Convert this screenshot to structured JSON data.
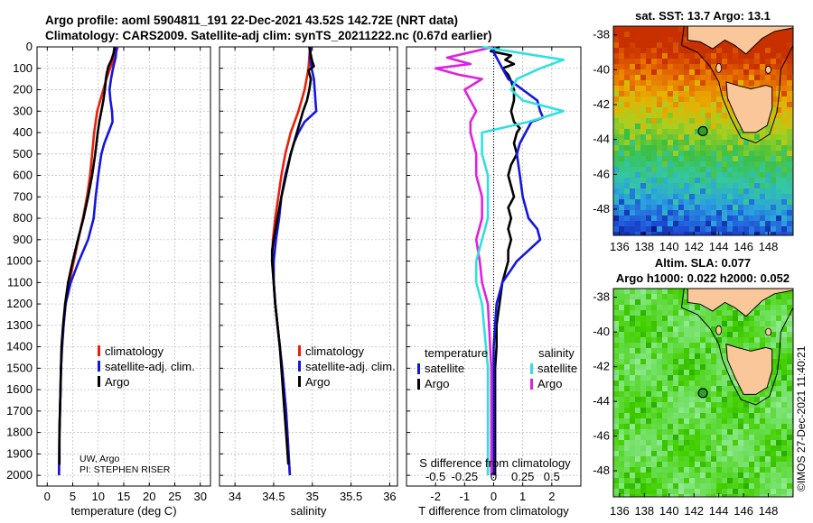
{
  "header": {
    "title_line1": "Argo profile: aoml 5904811_191 22-Dec-2021 43.52S 142.72E (NRT data)",
    "title_line2": "Climatology: CARS2009. Satellite-adj clim: synTS_20211222.nc (0.67d earlier)"
  },
  "credit": "©IMOS 27-Dec-2021 11:40:21",
  "colors": {
    "climatology": "#e8200a",
    "satellite_adj": "#1515e0",
    "argo": "#000000",
    "temp_diff": "#000000",
    "sat_diff_T": "#1515e0",
    "sal_diff_argo": "#e020e0",
    "sal_diff_sat": "#30e0e0"
  },
  "chart_data": [
    {
      "type": "line",
      "name": "temperature",
      "xlabel": "temperature (deg C)",
      "xlim": [
        -2,
        32
      ],
      "xticks": [
        0,
        5,
        10,
        15,
        20,
        25,
        30
      ],
      "ylim": [
        2050,
        0
      ],
      "yticks": [
        0,
        100,
        200,
        300,
        400,
        500,
        600,
        700,
        800,
        900,
        1000,
        1100,
        1200,
        1300,
        1400,
        1500,
        1600,
        1700,
        1800,
        1900,
        2000
      ],
      "grid": true,
      "legend": [
        "climatology",
        "satellite-adj. clim.",
        "Argo"
      ],
      "annotation_lines": [
        "UW, Argo",
        "PI: STEPHEN RISER"
      ],
      "series": [
        {
          "name": "climatology",
          "color_key": "climatology",
          "depth": [
            0,
            50,
            100,
            150,
            200,
            300,
            400,
            500,
            600,
            700,
            800,
            900,
            1000,
            1100,
            1200,
            1300,
            1400,
            1500,
            1600,
            1800,
            2000
          ],
          "values": [
            13.8,
            13.2,
            12.3,
            11.6,
            11.0,
            9.8,
            9.2,
            8.8,
            8.4,
            7.8,
            7.0,
            6.1,
            5.2,
            4.3,
            3.6,
            3.2,
            2.9,
            2.7,
            2.6,
            2.4,
            2.3
          ]
        },
        {
          "name": "satellite-adj. clim.",
          "color_key": "satellite_adj",
          "depth": [
            0,
            50,
            100,
            150,
            200,
            250,
            300,
            350,
            400,
            450,
            500,
            600,
            700,
            800,
            900,
            1000,
            1100,
            1200,
            1300,
            1400,
            1500,
            1600,
            1800,
            2000
          ],
          "values": [
            13.6,
            13.4,
            12.9,
            12.5,
            12.2,
            12.4,
            12.7,
            12.8,
            12.0,
            11.2,
            10.6,
            10.0,
            9.5,
            9.1,
            8.0,
            6.2,
            4.6,
            3.6,
            3.2,
            2.9,
            2.7,
            2.6,
            2.4,
            2.3
          ]
        },
        {
          "name": "Argo",
          "color_key": "argo",
          "depth": [
            0,
            30,
            60,
            90,
            120,
            150,
            200,
            250,
            300,
            350,
            400,
            500,
            600,
            700,
            800,
            900,
            1000,
            1100,
            1200,
            1300,
            1400,
            1500,
            1600,
            1700,
            1800,
            1900,
            1950
          ],
          "values": [
            13.2,
            13.0,
            12.6,
            12.0,
            11.7,
            11.5,
            11.3,
            11.0,
            10.6,
            10.2,
            9.9,
            9.4,
            8.8,
            8.0,
            7.1,
            6.0,
            5.0,
            4.1,
            3.5,
            3.1,
            2.8,
            2.7,
            2.6,
            2.5,
            2.4,
            2.4,
            2.4
          ]
        }
      ]
    },
    {
      "type": "line",
      "name": "salinity",
      "xlabel": "salinity",
      "xlim": [
        33.8,
        36.1
      ],
      "xticks": [
        34,
        34.5,
        35,
        35.5,
        36
      ],
      "xticklabels": [
        "34",
        "34.5",
        "35",
        "35.5",
        "36"
      ],
      "ylim": [
        2050,
        0
      ],
      "grid": true,
      "legend": [
        "climatology",
        "satellite-adj. clim.",
        "Argo"
      ],
      "series": [
        {
          "name": "climatology",
          "color_key": "climatology",
          "depth": [
            0,
            100,
            200,
            300,
            400,
            500,
            600,
            700,
            800,
            900,
            1000,
            1100,
            1200,
            1300,
            1400,
            1500,
            1700,
            2000
          ],
          "values": [
            34.97,
            34.95,
            34.9,
            34.82,
            34.72,
            34.65,
            34.6,
            34.56,
            34.52,
            34.49,
            34.48,
            34.5,
            34.52,
            34.55,
            34.58,
            34.61,
            34.66,
            34.71
          ]
        },
        {
          "name": "satellite-adj. clim.",
          "color_key": "satellite_adj",
          "depth": [
            0,
            50,
            100,
            150,
            200,
            250,
            300,
            350,
            400,
            450,
            500,
            600,
            700,
            800,
            900,
            1000,
            1100,
            1200,
            1300,
            1400,
            1500,
            1700,
            2000
          ],
          "values": [
            34.98,
            34.97,
            34.99,
            35.02,
            35.03,
            35.04,
            35.05,
            34.9,
            34.82,
            34.76,
            34.72,
            34.65,
            34.6,
            34.57,
            34.53,
            34.5,
            34.5,
            34.52,
            34.55,
            34.58,
            34.61,
            34.66,
            34.71
          ]
        },
        {
          "name": "Argo",
          "color_key": "argo",
          "depth": [
            0,
            40,
            70,
            90,
            110,
            150,
            200,
            250,
            300,
            350,
            400,
            500,
            600,
            700,
            800,
            900,
            950,
            1000,
            1050,
            1100,
            1200,
            1300,
            1400,
            1500,
            1600,
            1700,
            1800,
            1900,
            1950
          ],
          "values": [
            34.96,
            34.98,
            35.0,
            35.02,
            34.95,
            34.98,
            34.96,
            34.93,
            34.88,
            34.84,
            34.8,
            34.72,
            34.66,
            34.6,
            34.55,
            34.5,
            34.48,
            34.48,
            34.49,
            34.5,
            34.52,
            34.55,
            34.58,
            34.6,
            34.62,
            34.64,
            34.66,
            34.68,
            34.69
          ]
        }
      ]
    },
    {
      "type": "line",
      "name": "difference",
      "xlabel": "T difference from climatology",
      "xlabel_top": "S difference from climatology",
      "xlim": [
        -3,
        3
      ],
      "xticks": [
        -2,
        -1,
        0,
        1,
        2
      ],
      "s_ticks": [
        -0.5,
        -0.25,
        0,
        0.25,
        0.5
      ],
      "s_ticklabels": [
        "-0.5",
        "-0.25",
        "0",
        "0.25",
        "0.5"
      ],
      "s_scale": 4,
      "ylim": [
        2050,
        0
      ],
      "grid": true,
      "legend_headings": [
        "temperature",
        "salinity"
      ],
      "legend": [
        "satellite",
        "Argo",
        "satellite",
        "Argo"
      ],
      "series": [
        {
          "name": "T Argo",
          "color_key": "temp_diff",
          "depth": [
            0,
            20,
            40,
            60,
            80,
            100,
            130,
            160,
            200,
            250,
            300,
            350,
            380,
            400,
            450,
            500,
            550,
            600,
            650,
            700,
            750,
            800,
            850,
            900,
            950,
            1000,
            1100,
            1200,
            1300,
            1400,
            1500,
            1600,
            1800,
            2000
          ],
          "values": [
            0.2,
            -0.1,
            0.6,
            0.4,
            0.7,
            0.3,
            0.5,
            0.6,
            0.7,
            0.7,
            0.6,
            0.7,
            0.9,
            0.8,
            0.7,
            0.8,
            0.6,
            0.5,
            0.6,
            0.7,
            0.5,
            0.6,
            0.5,
            0.6,
            0.5,
            0.5,
            0.3,
            0.2,
            0.1,
            0.1,
            0.05,
            0.05,
            0.05,
            0.05
          ]
        },
        {
          "name": "T satellite",
          "color_key": "sat_diff_T",
          "depth": [
            0,
            100,
            150,
            200,
            250,
            300,
            330,
            350,
            400,
            450,
            500,
            600,
            700,
            800,
            850,
            900,
            950,
            1000,
            1100,
            1200,
            1300,
            1400,
            1500,
            1600,
            1800,
            2000
          ],
          "values": [
            -0.1,
            0.3,
            0.5,
            1.0,
            1.5,
            1.6,
            1.7,
            1.3,
            1.1,
            0.9,
            0.8,
            0.9,
            1.0,
            1.2,
            1.5,
            1.6,
            1.2,
            0.8,
            0.3,
            0.1,
            0.05,
            0.0,
            0.0,
            0.0,
            0.0,
            0.0
          ]
        },
        {
          "name": "S Argo",
          "color_key": "sal_diff_argo",
          "depth": [
            0,
            50,
            80,
            100,
            130,
            150,
            200,
            250,
            300,
            350,
            400,
            500,
            600,
            700,
            800,
            900,
            1000,
            1100,
            1200,
            1500,
            1800,
            2000
          ],
          "values": [
            0.0,
            -0.4,
            -0.2,
            -0.5,
            -0.3,
            -0.1,
            -0.25,
            -0.2,
            -0.15,
            -0.2,
            -0.2,
            -0.15,
            -0.15,
            -0.1,
            -0.1,
            -0.15,
            -0.12,
            -0.1,
            -0.05,
            -0.02,
            -0.02,
            -0.02
          ]
        },
        {
          "name": "S satellite",
          "color_key": "sal_diff_sat",
          "depth": [
            0,
            60,
            100,
            150,
            200,
            250,
            300,
            350,
            400,
            500,
            600,
            700,
            800,
            900,
            1000,
            1100,
            1200,
            1500,
            1800,
            2000
          ],
          "values": [
            -0.1,
            0.6,
            0.4,
            0.2,
            0.15,
            0.25,
            0.6,
            0.3,
            -0.1,
            -0.1,
            -0.05,
            -0.05,
            -0.05,
            -0.1,
            -0.15,
            -0.15,
            -0.1,
            -0.05,
            -0.05,
            -0.05
          ]
        }
      ]
    },
    {
      "type": "heatmap",
      "name": "sst_map",
      "title": "sat. SST: 13.7  Argo: 13.1",
      "x": [
        136,
        138,
        140,
        142,
        144,
        146,
        148
      ],
      "y": [
        -38,
        -40,
        -42,
        -44,
        -46,
        -48
      ],
      "xlim": [
        135.5,
        150
      ],
      "ylim": [
        -49.5,
        -37.5
      ],
      "argo_position": {
        "lon": 142.72,
        "lat": -43.52
      },
      "field": [
        [
          14,
          16,
          17,
          18,
          18,
          18,
          18,
          18
        ],
        [
          14,
          15,
          16,
          17,
          17,
          17,
          17,
          18
        ],
        [
          13,
          14,
          15,
          15,
          15,
          16,
          16,
          16
        ],
        [
          12,
          12,
          12,
          13,
          13,
          14,
          14,
          14
        ],
        [
          10,
          11,
          11,
          12,
          12,
          12,
          12,
          12
        ],
        [
          9,
          9,
          10,
          10,
          11,
          11,
          11,
          11
        ],
        [
          8,
          8,
          9,
          9,
          10,
          10,
          10,
          10
        ]
      ],
      "palette": [
        "#0a1a8a",
        "#1f4fd8",
        "#2aa0e0",
        "#35c8a0",
        "#3cbf40",
        "#a8d020",
        "#e8b000",
        "#e87000",
        "#c83000"
      ],
      "value_range": [
        8,
        19
      ]
    },
    {
      "type": "heatmap",
      "name": "sla_map",
      "title_line1": "Altim. SLA: 0.077",
      "title_line2": "Argo h1000: 0.022 h2000: 0.052",
      "x": [
        136,
        138,
        140,
        142,
        144,
        146,
        148
      ],
      "y": [
        -38,
        -40,
        -42,
        -44,
        -46,
        -48
      ],
      "xlim": [
        135.5,
        150
      ],
      "ylim": [
        -49.5,
        -37.5
      ],
      "argo_position": {
        "lon": 142.72,
        "lat": -43.52
      },
      "palette": [
        "#28b000",
        "#44d000",
        "#70e060",
        "#90e890"
      ],
      "value_range": [
        0,
        1
      ]
    }
  ]
}
